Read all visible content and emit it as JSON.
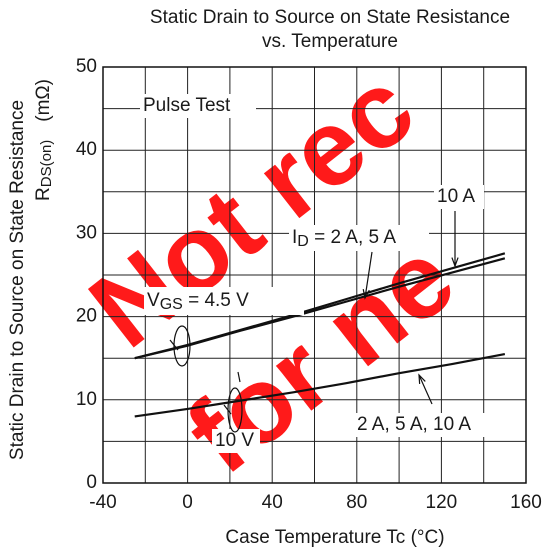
{
  "chart_data": {
    "type": "line",
    "title": [
      "Static Drain to Source on State Resistance",
      "vs. Temperature"
    ],
    "ylabel": [
      "Static Drain to Source on State Resistance",
      {
        "main": "R",
        "sub": "DS(on)",
        "unit": "(mΩ)"
      }
    ],
    "xlabel": "Case Temperature    Tc    (°C)",
    "xlim": [
      -40,
      160
    ],
    "ylim": [
      0,
      50
    ],
    "xticks": [
      -40,
      0,
      40,
      80,
      120,
      160
    ],
    "yticks": [
      0,
      10,
      20,
      30,
      40,
      50
    ],
    "xgrid": [
      -40,
      -20,
      0,
      20,
      40,
      60,
      80,
      100,
      120,
      140,
      160
    ],
    "ygrid": [
      0,
      5,
      10,
      15,
      20,
      25,
      30,
      35,
      40,
      45,
      50
    ],
    "grid": true,
    "x": [
      -25,
      0,
      25,
      50,
      75,
      100,
      125,
      150
    ],
    "series": [
      {
        "color": "#111111",
        "values": [
          15,
          16.6,
          18.4,
          20.2,
          22.1,
          24,
          25.8,
          27.6
        ]
      },
      {
        "color": "#111111",
        "values": [
          15,
          16.5,
          18.3,
          20,
          21.8,
          23.6,
          25.3,
          27.0
        ]
      },
      {
        "color": "#111111",
        "values": [
          8,
          8.9,
          9.9,
          10.9,
          12,
          13.2,
          14.3,
          15.5
        ]
      }
    ],
    "annotations": {
      "pulse": "Pulse Test",
      "id10": "10 A",
      "id25": {
        "main": "I",
        "sub": "D",
        "rest": " = 2 A, 5 A"
      },
      "vgs45": {
        "main": "V",
        "sub": "GS",
        "rest": " = 4.5 V"
      },
      "idall": "2 A, 5 A, 10 A",
      "vgs10": "10 V"
    },
    "watermark": [
      "Not rec",
      "for ne"
    ]
  }
}
